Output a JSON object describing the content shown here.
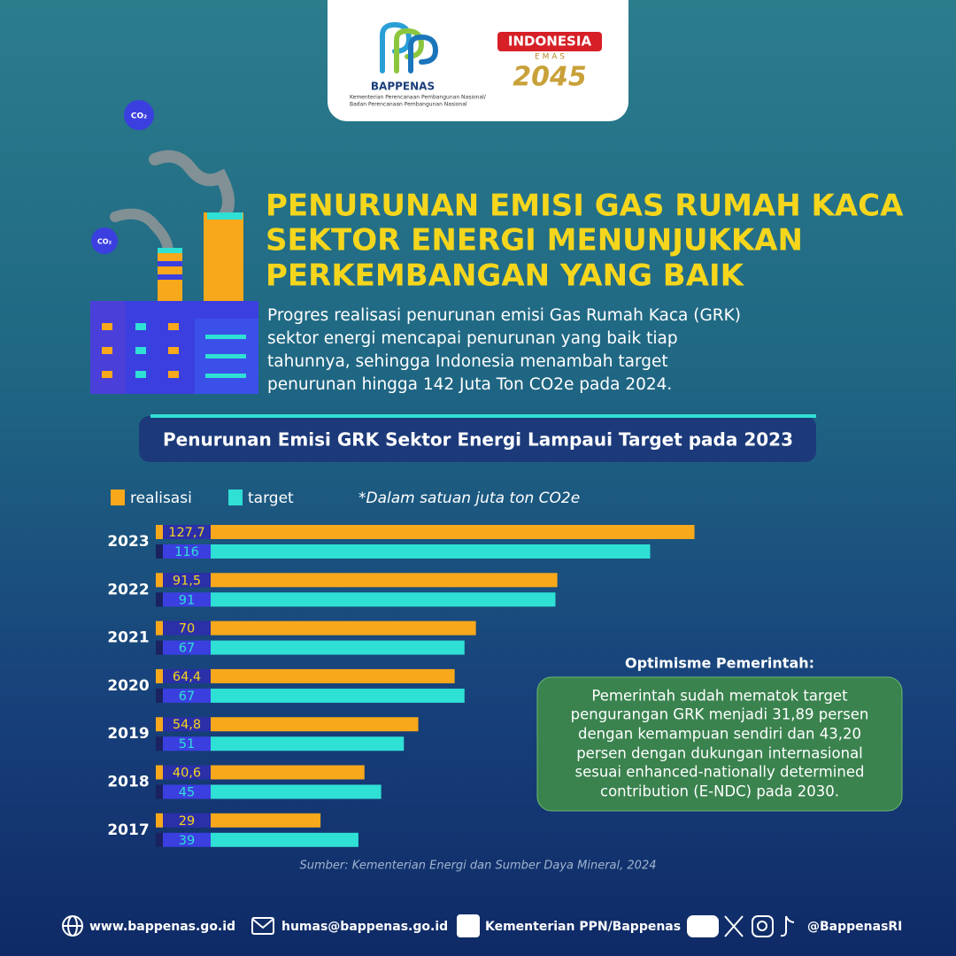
{
  "header": {
    "logo_name": "BAPPENAS",
    "logo_sub": [
      "Kementerian Perencanaan Pembangunan Nasional/",
      "Badan Perencanaan Pembangunan Nasional"
    ],
    "emas_top": "INDONESIA",
    "emas_mid": "E M A S",
    "emas_year": "2045"
  },
  "co2_label": "CO₂",
  "headline": [
    "PENURUNAN EMISI GAS RUMAH KACA",
    "SEKTOR ENERGI MENUNJUKKAN",
    "PERKEMBANGAN YANG BAIK"
  ],
  "paragraph": [
    "Progres realisasi penurunan emisi Gas Rumah Kaca (GRK)",
    "sektor energi mencapai penurunan yang baik tiap",
    "tahunnya, sehingga Indonesia menambah target",
    "penurunan hingga 142 Juta Ton CO2e pada 2024."
  ],
  "chart_data": {
    "type": "bar",
    "orientation": "horizontal",
    "title": "Penurunan Emisi GRK Sektor Energi Lampaui Target pada 2023",
    "note": "*Dalam satuan juta ton CO2e",
    "source": "Sumber: Kementerian Energi dan Sumber Daya Mineral, 2024",
    "categories": [
      "2023",
      "2022",
      "2021",
      "2020",
      "2019",
      "2018",
      "2017"
    ],
    "series": [
      {
        "name": "realisasi",
        "color": "#f7a81b",
        "values": [
          127.7,
          91.5,
          70,
          64.4,
          54.8,
          40.6,
          29
        ],
        "value_labels": [
          "127,7",
          "91,5",
          "70",
          "64,4",
          "54,8",
          "40,6",
          "29"
        ]
      },
      {
        "name": "target",
        "color": "#2fe0d4",
        "values": [
          116,
          91,
          67,
          67,
          51,
          45,
          39
        ]
      }
    ]
  },
  "side": {
    "heading": "Optimisme Pemerintah:",
    "lines": [
      "Pemerintah sudah mematok target",
      "pengurangan GRK menjadi 31,89 persen",
      "dengan kemampuan sendiri dan 43,20",
      "persen dengan dukungan internasional",
      "sesuai enhanced-nationally determined",
      "contribution (E-NDC) pada 2030."
    ]
  },
  "footer": {
    "website": "www.bappenas.go.id",
    "email": "humas@bappenas.go.id",
    "facebook": "Kementerian PPN/Bappenas",
    "social": "@BappenasRI"
  }
}
